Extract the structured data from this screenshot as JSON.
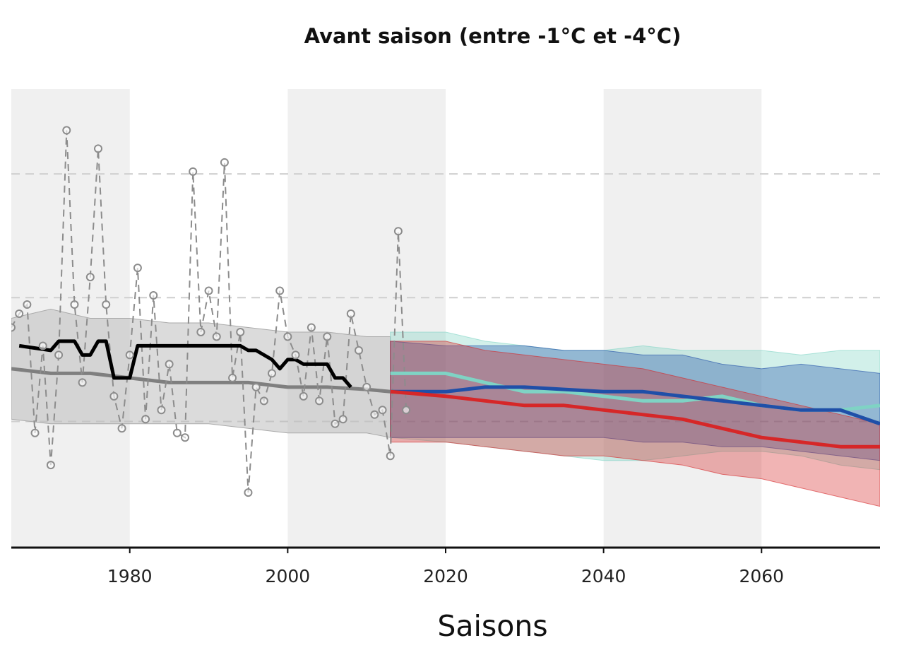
{
  "chart_data": {
    "type": "line",
    "title": "Avant saison (entre -1°C et -4°C)",
    "xlabel": "Saisons",
    "ylabel": "",
    "xlim": [
      1965,
      2075
    ],
    "ylim": [
      0,
      100
    ],
    "xticks": [
      "1980",
      "2000",
      "2020",
      "2040",
      "2060"
    ],
    "y_gridlines": [
      81.5,
      54.5,
      27.5
    ],
    "shaded_periods": [
      [
        1965,
        1980
      ],
      [
        2000,
        2020
      ],
      [
        2040,
        2060
      ]
    ],
    "colors": {
      "observations": "#8c8c8c",
      "obs_mean": "#000000",
      "hist_median": "#7f7f7f",
      "hist_band": "#bdbdbd",
      "scenario_teal": "#7fd3c4",
      "scenario_blue": "#1f4fa8",
      "scenario_red": "#d62728",
      "period_shade": "#f0f0f0"
    },
    "series": [
      {
        "role": "observations",
        "style": "dashed-gray-circles",
        "x": [
          1965,
          1966,
          1967,
          1968,
          1969,
          1970,
          1971,
          1972,
          1973,
          1974,
          1975,
          1976,
          1977,
          1978,
          1979,
          1980,
          1981,
          1982,
          1983,
          1984,
          1985,
          1986,
          1987,
          1988,
          1989,
          1990,
          1991,
          1992,
          1993,
          1994,
          1995,
          1996,
          1997,
          1998,
          1999,
          2000,
          2001,
          2002,
          2003,
          2004,
          2005,
          2006,
          2007,
          2008,
          2009,
          2010,
          2011,
          2012,
          2013,
          2014,
          2015
        ],
        "values": [
          48,
          51,
          53,
          25,
          44,
          18,
          42,
          91,
          53,
          36,
          59,
          87,
          53,
          33,
          26,
          42,
          61,
          28,
          55,
          30,
          40,
          25,
          24,
          82,
          47,
          56,
          46,
          84,
          37,
          47,
          12,
          35,
          32,
          38,
          56,
          46,
          42,
          33,
          48,
          32,
          46,
          27,
          28,
          51,
          43,
          35,
          29,
          30,
          20,
          69,
          30
        ]
      },
      {
        "role": "obs_mean",
        "style": "solid-black-thick",
        "x": [
          1966,
          1970,
          1971,
          1972,
          1973,
          1974,
          1975,
          1976,
          1977,
          1978,
          1979,
          1980,
          1981,
          1982,
          1983,
          1984,
          1985,
          1986,
          1987,
          1988,
          1989,
          1990,
          1991,
          1992,
          1993,
          1994,
          1995,
          1996,
          1997,
          1998,
          1999,
          2000,
          2001,
          2002,
          2003,
          2004,
          2005,
          2006,
          2007,
          2008
        ],
        "values": [
          44,
          43,
          45,
          45,
          45,
          42,
          42,
          45,
          45,
          37,
          37,
          37,
          44,
          44,
          44,
          44,
          44,
          44,
          44,
          44,
          44,
          44,
          44,
          44,
          44,
          44,
          43,
          43,
          42,
          41,
          39,
          41,
          41,
          40,
          40,
          40,
          40,
          37,
          37,
          35
        ]
      },
      {
        "role": "hist_median",
        "style": "solid-gray",
        "x": [
          1965,
          1970,
          1975,
          1980,
          1985,
          1990,
          1995,
          2000,
          2005,
          2010,
          2013
        ],
        "values": [
          39,
          38,
          38,
          37,
          36,
          36,
          36,
          35,
          35,
          34.5,
          34
        ]
      },
      {
        "role": "hist_band",
        "style": "gray-band",
        "x": [
          1965,
          1970,
          1975,
          1980,
          1985,
          1990,
          1995,
          2000,
          2005,
          2010,
          2013
        ],
        "lower": [
          28,
          27,
          27,
          27,
          27,
          27,
          26,
          25,
          25,
          25,
          24
        ],
        "upper": [
          50,
          52,
          50,
          50,
          49,
          49,
          48,
          47,
          47,
          46,
          46
        ]
      },
      {
        "role": "scenario_teal",
        "x": [
          2013,
          2020,
          2025,
          2030,
          2035,
          2040,
          2045,
          2050,
          2055,
          2060,
          2065,
          2070,
          2075
        ],
        "values": [
          38,
          38,
          36,
          34,
          34,
          33,
          32,
          32,
          33,
          31,
          30,
          30,
          31
        ],
        "lower": [
          24,
          23,
          22,
          21,
          20,
          19,
          19,
          20,
          21,
          21,
          20,
          18,
          17
        ],
        "upper": [
          47,
          47,
          45,
          44,
          43,
          43,
          44,
          43,
          43,
          43,
          42,
          43,
          43
        ]
      },
      {
        "role": "scenario_blue",
        "x": [
          2013,
          2020,
          2025,
          2030,
          2035,
          2040,
          2045,
          2050,
          2055,
          2060,
          2065,
          2070,
          2075
        ],
        "values": [
          34,
          34,
          35,
          35,
          34.5,
          34,
          34,
          33,
          32,
          31,
          30,
          30,
          27
        ],
        "lower": [
          24,
          24,
          24,
          24,
          24,
          24,
          23,
          23,
          22,
          22,
          21,
          20,
          19
        ],
        "upper": [
          45,
          44,
          44,
          44,
          43,
          43,
          42,
          42,
          40,
          39,
          40,
          39,
          38
        ]
      },
      {
        "role": "scenario_red",
        "x": [
          2013,
          2020,
          2025,
          2030,
          2035,
          2040,
          2045,
          2050,
          2055,
          2060,
          2065,
          2070,
          2075
        ],
        "values": [
          34,
          33,
          32,
          31,
          31,
          30,
          29,
          28,
          26,
          24,
          23,
          22,
          22
        ],
        "lower": [
          23,
          23,
          22,
          21,
          20,
          20,
          19,
          18,
          16,
          15,
          13,
          11,
          9
        ],
        "upper": [
          45,
          45,
          43,
          42,
          41,
          40,
          39,
          37,
          35,
          33,
          31,
          29,
          27
        ]
      }
    ]
  }
}
